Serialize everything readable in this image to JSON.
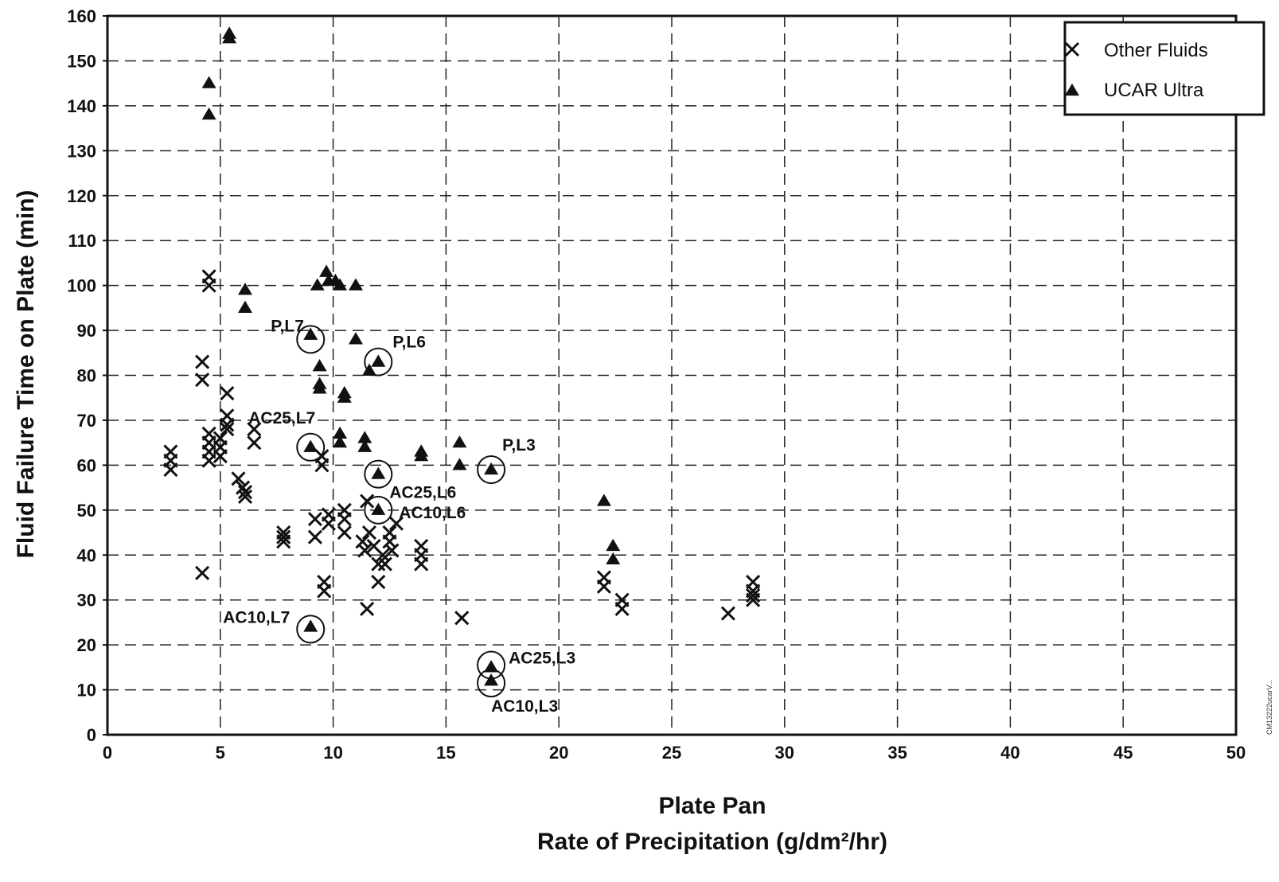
{
  "chart_data": {
    "type": "scatter",
    "xlabel": "Plate Pan",
    "xlabel2": "Rate of Precipitation (g/dm²/hr)",
    "ylabel": "Fluid Failure Time on Plate (min)",
    "xlim": [
      0,
      50
    ],
    "ylim": [
      0,
      160
    ],
    "x_ticks": [
      "0",
      "5",
      "10",
      "15",
      "20",
      "25",
      "30",
      "35",
      "40",
      "45",
      "50"
    ],
    "y_ticks": [
      "0",
      "10",
      "20",
      "30",
      "40",
      "50",
      "60",
      "70",
      "80",
      "90",
      "100",
      "110",
      "120",
      "130",
      "140",
      "150",
      "160"
    ],
    "grid": "dashed",
    "legend_position": "top-right",
    "series": [
      {
        "name": "Other Fluids",
        "marker": "x",
        "color": "#111111",
        "points": [
          [
            2.8,
            63
          ],
          [
            2.8,
            59
          ],
          [
            2.8,
            61
          ],
          [
            4.2,
            83
          ],
          [
            4.2,
            79
          ],
          [
            4.2,
            36
          ],
          [
            4.5,
            102
          ],
          [
            4.5,
            100
          ],
          [
            4.5,
            67
          ],
          [
            4.5,
            65
          ],
          [
            4.5,
            63
          ],
          [
            4.5,
            61
          ],
          [
            5.0,
            62
          ],
          [
            5.0,
            64
          ],
          [
            5.0,
            66
          ],
          [
            5.3,
            76
          ],
          [
            5.3,
            71
          ],
          [
            5.3,
            69
          ],
          [
            5.3,
            68
          ],
          [
            5.8,
            57
          ],
          [
            6.0,
            55
          ],
          [
            6.1,
            54
          ],
          [
            6.1,
            53
          ],
          [
            6.5,
            68
          ],
          [
            6.5,
            65
          ],
          [
            7.8,
            45
          ],
          [
            7.8,
            43
          ],
          [
            7.8,
            44
          ],
          [
            9.2,
            48
          ],
          [
            9.2,
            44
          ],
          [
            9.5,
            62
          ],
          [
            9.5,
            60
          ],
          [
            9.6,
            34
          ],
          [
            9.6,
            32
          ],
          [
            9.8,
            49
          ],
          [
            9.8,
            47
          ],
          [
            10.5,
            50
          ],
          [
            10.5,
            48
          ],
          [
            10.5,
            45
          ],
          [
            11.3,
            43
          ],
          [
            11.4,
            41
          ],
          [
            11.5,
            52
          ],
          [
            11.5,
            28
          ],
          [
            11.6,
            45
          ],
          [
            11.8,
            42
          ],
          [
            12.0,
            38
          ],
          [
            12.0,
            34
          ],
          [
            12.2,
            40
          ],
          [
            12.3,
            38
          ],
          [
            12.5,
            45
          ],
          [
            12.5,
            43
          ],
          [
            12.6,
            41
          ],
          [
            12.8,
            47
          ],
          [
            13.9,
            42
          ],
          [
            13.9,
            40
          ],
          [
            13.9,
            38
          ],
          [
            15.7,
            26
          ],
          [
            22.0,
            35
          ],
          [
            22.0,
            33
          ],
          [
            22.8,
            30
          ],
          [
            22.8,
            28
          ],
          [
            27.5,
            27
          ],
          [
            28.6,
            34
          ],
          [
            28.6,
            32
          ],
          [
            28.6,
            31
          ],
          [
            28.6,
            30
          ]
        ]
      },
      {
        "name": "UCAR Ultra",
        "marker": "triangle",
        "color": "#111111",
        "points": [
          [
            4.5,
            145
          ],
          [
            4.5,
            138
          ],
          [
            5.4,
            156
          ],
          [
            5.4,
            155
          ],
          [
            6.1,
            99
          ],
          [
            6.1,
            95
          ],
          [
            9.0,
            89
          ],
          [
            9.0,
            64
          ],
          [
            9.0,
            24
          ],
          [
            9.3,
            100
          ],
          [
            9.4,
            82
          ],
          [
            9.4,
            78
          ],
          [
            9.4,
            77
          ],
          [
            9.7,
            103
          ],
          [
            9.8,
            101
          ],
          [
            10.1,
            101
          ],
          [
            10.3,
            100
          ],
          [
            10.3,
            67
          ],
          [
            10.3,
            65
          ],
          [
            10.5,
            76
          ],
          [
            10.5,
            75
          ],
          [
            11.0,
            100
          ],
          [
            11.0,
            88
          ],
          [
            11.4,
            66
          ],
          [
            11.4,
            64
          ],
          [
            11.6,
            81
          ],
          [
            12.0,
            83
          ],
          [
            12.0,
            58
          ],
          [
            12.0,
            50
          ],
          [
            13.9,
            63
          ],
          [
            13.9,
            62
          ],
          [
            15.6,
            65
          ],
          [
            15.6,
            60
          ],
          [
            17.0,
            59
          ],
          [
            17.0,
            15
          ],
          [
            17.0,
            12
          ],
          [
            22.0,
            52
          ],
          [
            22.4,
            42
          ],
          [
            22.4,
            39
          ]
        ]
      }
    ],
    "annotations": [
      {
        "text": "P,L7",
        "x": 9.0,
        "y": 88,
        "circled": true
      },
      {
        "text": "P,L6",
        "x": 12.0,
        "y": 83,
        "circled": true
      },
      {
        "text": "AC25,L7",
        "x": 9.0,
        "y": 64,
        "circled": true
      },
      {
        "text": "AC25,L6",
        "x": 12.0,
        "y": 58,
        "circled": true
      },
      {
        "text": "AC10,L6",
        "x": 12.0,
        "y": 50,
        "circled": true
      },
      {
        "text": "P,L3",
        "x": 17.0,
        "y": 59,
        "circled": true
      },
      {
        "text": "AC10,L7",
        "x": 9.0,
        "y": 23.5,
        "circled": true
      },
      {
        "text": "AC25,L3",
        "x": 17.0,
        "y": 15.5,
        "circled": true
      },
      {
        "text": "AC10,L3",
        "x": 17.0,
        "y": 11.5,
        "circled": true
      }
    ],
    "side_note": "CM13222ucarV..."
  }
}
